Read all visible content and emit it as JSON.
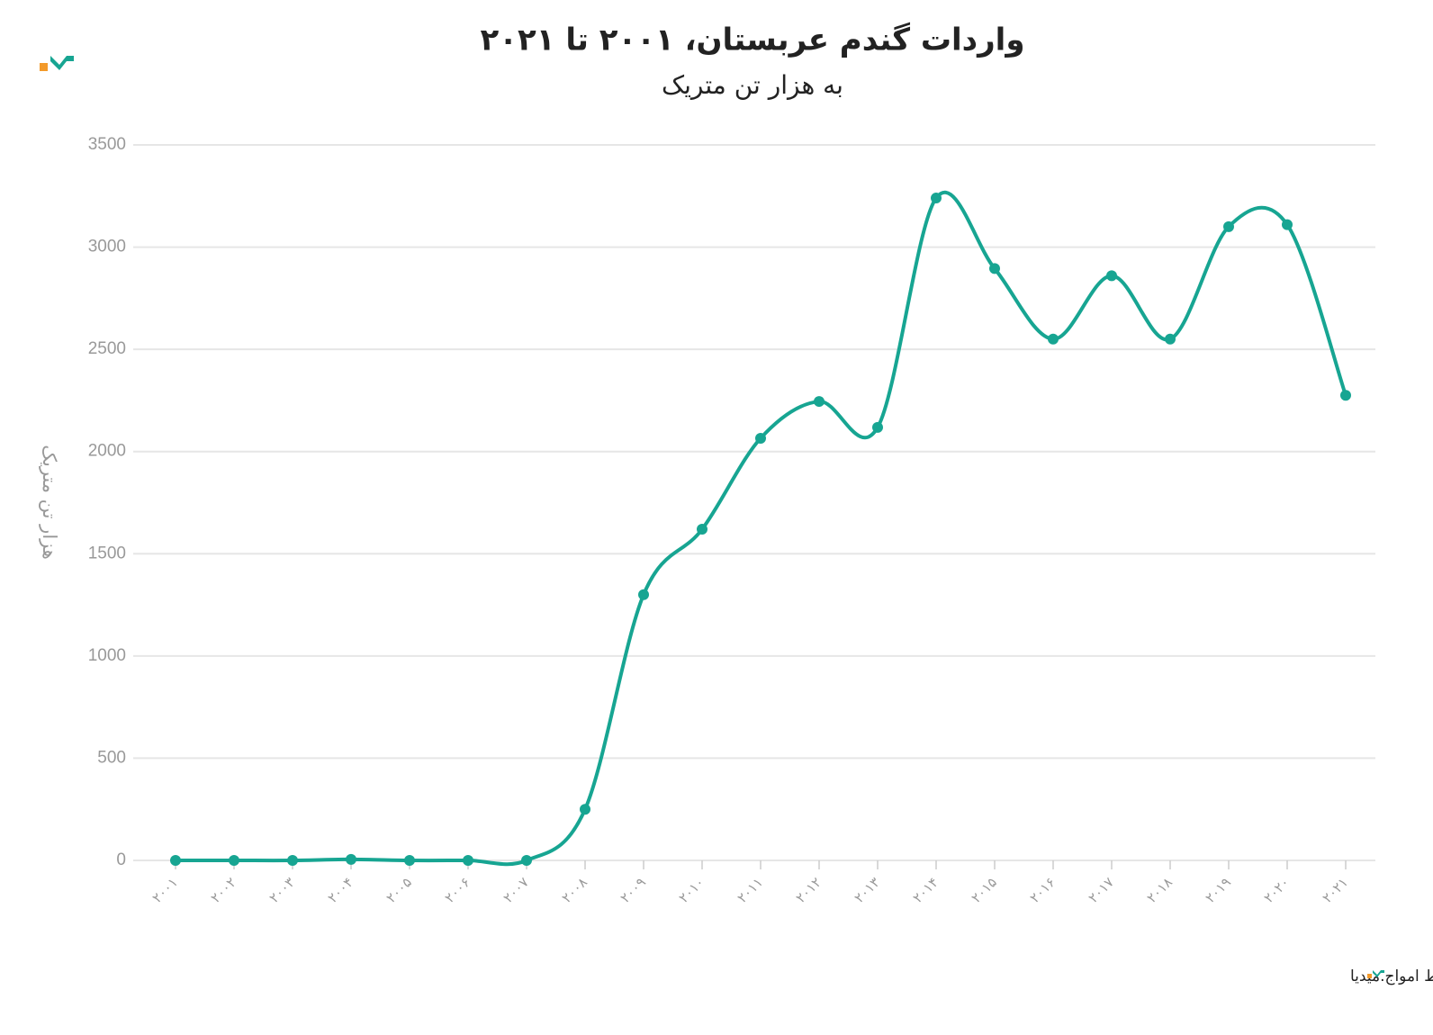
{
  "chart_data": {
    "type": "line",
    "title": "واردات گندم عربستان، ۲۰۰۱ تا ۲۰۲۱",
    "subtitle": "به هزار تن متریک",
    "y_label": "هزار تن متریک",
    "source": "منبع: سازمان غذا و کشاورزی • تولیدشده توسط امواج.میدیا",
    "categories": [
      "۲۰۰۱",
      "۲۰۰۲",
      "۲۰۰۳",
      "۲۰۰۴",
      "۲۰۰۵",
      "۲۰۰۶",
      "۲۰۰۷",
      "۲۰۰۸",
      "۲۰۰۹",
      "۲۰۱۰",
      "۲۰۱۱",
      "۲۰۱۲",
      "۲۰۱۳",
      "۲۰۱۴",
      "۲۰۱۵",
      "۲۰۱۶",
      "۲۰۱۷",
      "۲۰۱۸",
      "۲۰۱۹",
      "۲۰۲۰",
      "۲۰۲۱"
    ],
    "values": [
      0,
      0,
      0,
      5,
      0,
      0,
      0,
      250,
      1300,
      1620,
      2065,
      2245,
      2118,
      3240,
      2895,
      2550,
      2860,
      2550,
      3100,
      3110,
      2275
    ],
    "color": "#17a592",
    "ylim": [
      0,
      3500
    ],
    "yticks": [
      0,
      500,
      1000,
      1500,
      2000,
      2500,
      3000,
      3500
    ],
    "grid": true,
    "smooth": true
  }
}
